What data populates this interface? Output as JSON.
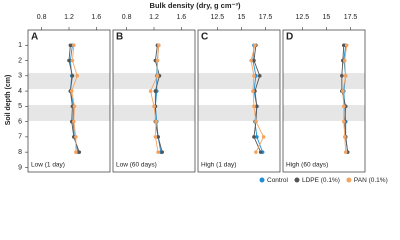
{
  "chart_data": {
    "type": "line",
    "title": "Bulk density (dry, g cm⁻³)",
    "y_label": "Soil depth (cm)",
    "ylim": [
      0,
      9.3
    ],
    "y_inverted": true,
    "yticks": [
      1,
      2,
      3,
      4,
      5,
      6,
      7,
      8,
      9
    ],
    "depths": [
      1,
      2,
      3,
      4,
      5,
      6,
      7,
      8
    ],
    "series": [
      {
        "name": "Control",
        "color": "#1f8fd6"
      },
      {
        "name": "LDPE (0.1%)",
        "color": "#555555"
      },
      {
        "name": "PAN (0.1%)",
        "color": "#f4a460"
      }
    ],
    "panels": [
      {
        "label": "A",
        "note": "Low (1 day)",
        "xlim": [
          0.6,
          1.8
        ],
        "xticks": [
          0.8,
          1.2,
          1.6
        ],
        "values": [
          [
            1.25,
            1.22,
            1.24,
            1.22,
            1.27,
            1.26,
            1.28,
            1.33
          ],
          [
            1.22,
            1.2,
            1.25,
            1.22,
            1.25,
            1.24,
            1.27,
            1.35
          ],
          [
            1.27,
            1.25,
            1.32,
            1.24,
            1.28,
            1.27,
            1.3,
            1.3
          ]
        ]
      },
      {
        "label": "B",
        "note": "Low (60 days)",
        "xlim": [
          0.6,
          1.8
        ],
        "xticks": [
          0.8,
          1.2,
          1.6
        ],
        "values": [
          [
            1.27,
            1.25,
            1.24,
            1.24,
            1.22,
            1.24,
            1.26,
            1.3
          ],
          [
            1.25,
            1.22,
            1.28,
            1.22,
            1.22,
            1.22,
            1.26,
            1.32
          ],
          [
            1.27,
            1.25,
            1.25,
            1.15,
            1.2,
            1.23,
            1.22,
            1.26
          ]
        ]
      },
      {
        "label": "C",
        "note": "High (1 day)",
        "xlim": [
          10.5,
          19
        ],
        "xticks": [
          12.5,
          15,
          17.5
        ],
        "values": [
          [
            16.3,
            16.2,
            16.5,
            16.3,
            16.6,
            16.4,
            16.6,
            17.2
          ],
          [
            16.5,
            16.3,
            16.9,
            16.4,
            16.6,
            16.5,
            16.3,
            17.0
          ],
          [
            16.4,
            16.0,
            16.3,
            16.2,
            16.3,
            16.5,
            17.3,
            16.5
          ]
        ]
      },
      {
        "label": "D",
        "note": "High (60 days)",
        "xlim": [
          10.5,
          19
        ],
        "xticks": [
          12.5,
          15,
          17.5
        ],
        "values": [
          [
            17.0,
            16.8,
            17.0,
            16.8,
            16.9,
            17.0,
            17.0,
            17.2
          ],
          [
            16.8,
            16.7,
            16.6,
            16.6,
            17.0,
            16.9,
            17.0,
            17.2
          ],
          [
            17.1,
            16.9,
            17.0,
            16.7,
            16.8,
            16.8,
            16.9,
            17.0
          ]
        ]
      }
    ]
  }
}
